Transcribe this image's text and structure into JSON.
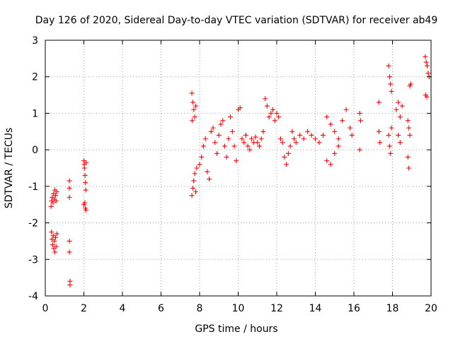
{
  "chart_data": {
    "type": "scatter",
    "title": "Day 126 of 2020, Sidereal Day-to-day VTEC variation (SDTVAR) for receiver ab49",
    "xlabel": "GPS time / hours",
    "ylabel": "SDTVAR / TECUs",
    "xlim": [
      0,
      20
    ],
    "ylim": [
      -4,
      3
    ],
    "x_ticks": [
      0,
      2,
      4,
      6,
      8,
      10,
      12,
      14,
      16,
      18,
      20
    ],
    "y_ticks": [
      -4,
      -3,
      -2,
      -1,
      0,
      1,
      2,
      3
    ],
    "x_tick_labels": [
      "0",
      "2",
      "4",
      "6",
      "8",
      "10",
      "12",
      "14",
      "16",
      "18",
      "20"
    ],
    "y_tick_labels": [
      "-4",
      "-3",
      "-2",
      "-1",
      "0",
      "1",
      "2",
      "3"
    ],
    "grid": true,
    "marker": "+",
    "color": "#ff0000",
    "series": [
      {
        "name": "SDTVAR",
        "points": [
          [
            0.3,
            -1.55
          ],
          [
            0.33,
            -1.4
          ],
          [
            0.36,
            -1.3
          ],
          [
            0.4,
            -1.45
          ],
          [
            0.43,
            -1.2
          ],
          [
            0.46,
            -1.35
          ],
          [
            0.5,
            -1.1
          ],
          [
            0.53,
            -1.25
          ],
          [
            0.56,
            -1.4
          ],
          [
            0.6,
            -1.15
          ],
          [
            0.32,
            -2.25
          ],
          [
            0.35,
            -2.45
          ],
          [
            0.38,
            -2.6
          ],
          [
            0.41,
            -2.35
          ],
          [
            0.44,
            -2.7
          ],
          [
            0.47,
            -2.5
          ],
          [
            0.5,
            -2.8
          ],
          [
            0.53,
            -2.4
          ],
          [
            0.56,
            -2.65
          ],
          [
            0.6,
            -2.3
          ],
          [
            1.25,
            -0.85
          ],
          [
            1.25,
            -1.05
          ],
          [
            1.25,
            -1.3
          ],
          [
            1.25,
            -2.5
          ],
          [
            1.25,
            -2.8
          ],
          [
            1.28,
            -3.6
          ],
          [
            1.28,
            -3.7
          ],
          [
            2.0,
            -0.3
          ],
          [
            2.03,
            -0.5
          ],
          [
            2.06,
            -0.7
          ],
          [
            2.08,
            -0.9
          ],
          [
            2.1,
            -1.1
          ],
          [
            2.02,
            -0.4
          ],
          [
            2.05,
            -1.45
          ],
          [
            2.08,
            -1.6
          ],
          [
            2.11,
            -1.65
          ],
          [
            2.0,
            -1.5
          ],
          [
            2.12,
            -0.35
          ],
          [
            7.6,
            1.55
          ],
          [
            7.65,
            1.3
          ],
          [
            7.7,
            1.1
          ],
          [
            7.75,
            0.9
          ],
          [
            7.8,
            1.2
          ],
          [
            7.62,
            0.8
          ],
          [
            7.6,
            -1.25
          ],
          [
            7.65,
            -1.05
          ],
          [
            7.7,
            -0.85
          ],
          [
            7.75,
            -0.65
          ],
          [
            7.8,
            -1.15
          ],
          [
            7.85,
            -0.5
          ],
          [
            8.0,
            -0.4
          ],
          [
            8.1,
            -0.2
          ],
          [
            8.2,
            0.1
          ],
          [
            8.3,
            0.3
          ],
          [
            8.4,
            -0.6
          ],
          [
            8.5,
            -0.8
          ],
          [
            8.6,
            0.5
          ],
          [
            8.7,
            0.6
          ],
          [
            8.8,
            0.2
          ],
          [
            8.9,
            -0.1
          ],
          [
            9.0,
            0.4
          ],
          [
            9.1,
            0.7
          ],
          [
            9.2,
            0.8
          ],
          [
            9.3,
            0.1
          ],
          [
            9.4,
            -0.2
          ],
          [
            9.5,
            0.3
          ],
          [
            9.6,
            0.9
          ],
          [
            9.7,
            0.5
          ],
          [
            9.8,
            0.1
          ],
          [
            9.9,
            -0.3
          ],
          [
            10.0,
            1.1
          ],
          [
            10.1,
            1.15
          ],
          [
            10.2,
            0.3
          ],
          [
            10.3,
            0.2
          ],
          [
            10.4,
            0.4
          ],
          [
            10.5,
            0.1
          ],
          [
            10.6,
            0.0
          ],
          [
            10.7,
            0.3
          ],
          [
            10.8,
            0.2
          ],
          [
            10.9,
            0.35
          ],
          [
            11.0,
            0.2
          ],
          [
            11.1,
            0.1
          ],
          [
            11.2,
            0.3
          ],
          [
            11.3,
            0.5
          ],
          [
            11.4,
            1.4
          ],
          [
            11.5,
            1.2
          ],
          [
            11.6,
            0.9
          ],
          [
            11.7,
            1.0
          ],
          [
            11.8,
            1.1
          ],
          [
            11.9,
            0.8
          ],
          [
            12.0,
            1.0
          ],
          [
            12.1,
            0.9
          ],
          [
            12.2,
            0.3
          ],
          [
            12.3,
            0.2
          ],
          [
            12.4,
            -0.2
          ],
          [
            12.5,
            -0.4
          ],
          [
            12.6,
            -0.1
          ],
          [
            12.7,
            0.1
          ],
          [
            12.8,
            0.5
          ],
          [
            12.9,
            0.3
          ],
          [
            13.0,
            0.2
          ],
          [
            13.2,
            0.4
          ],
          [
            13.4,
            0.3
          ],
          [
            13.6,
            0.5
          ],
          [
            13.8,
            0.4
          ],
          [
            14.0,
            0.3
          ],
          [
            14.2,
            0.2
          ],
          [
            14.4,
            0.4
          ],
          [
            14.6,
            0.9
          ],
          [
            14.8,
            0.7
          ],
          [
            14.6,
            -0.3
          ],
          [
            14.8,
            -0.4
          ],
          [
            15.0,
            0.5
          ],
          [
            15.2,
            0.3
          ],
          [
            15.4,
            0.8
          ],
          [
            15.6,
            1.1
          ],
          [
            15.8,
            0.6
          ],
          [
            15.9,
            0.4
          ],
          [
            15.2,
            0.1
          ],
          [
            15.0,
            -0.1
          ],
          [
            16.3,
            1.0
          ],
          [
            16.35,
            0.8
          ],
          [
            16.3,
            0.0
          ],
          [
            17.3,
            1.3
          ],
          [
            17.3,
            0.5
          ],
          [
            17.35,
            0.2
          ],
          [
            17.8,
            2.3
          ],
          [
            17.85,
            2.0
          ],
          [
            17.9,
            1.8
          ],
          [
            17.95,
            1.6
          ],
          [
            17.8,
            0.4
          ],
          [
            17.85,
            0.1
          ],
          [
            17.9,
            -0.1
          ],
          [
            17.95,
            0.6
          ],
          [
            18.2,
            1.1
          ],
          [
            18.3,
            1.3
          ],
          [
            18.4,
            0.9
          ],
          [
            18.5,
            1.2
          ],
          [
            18.3,
            0.4
          ],
          [
            18.4,
            0.2
          ],
          [
            18.8,
            0.8
          ],
          [
            18.85,
            0.6
          ],
          [
            18.9,
            0.4
          ],
          [
            18.8,
            -0.2
          ],
          [
            18.85,
            -0.5
          ],
          [
            18.9,
            1.75
          ],
          [
            18.95,
            1.8
          ],
          [
            19.7,
            2.55
          ],
          [
            19.75,
            2.4
          ],
          [
            19.8,
            2.3
          ],
          [
            19.85,
            2.1
          ],
          [
            19.9,
            2.0
          ],
          [
            19.72,
            1.5
          ],
          [
            19.78,
            1.45
          ]
        ]
      }
    ]
  }
}
